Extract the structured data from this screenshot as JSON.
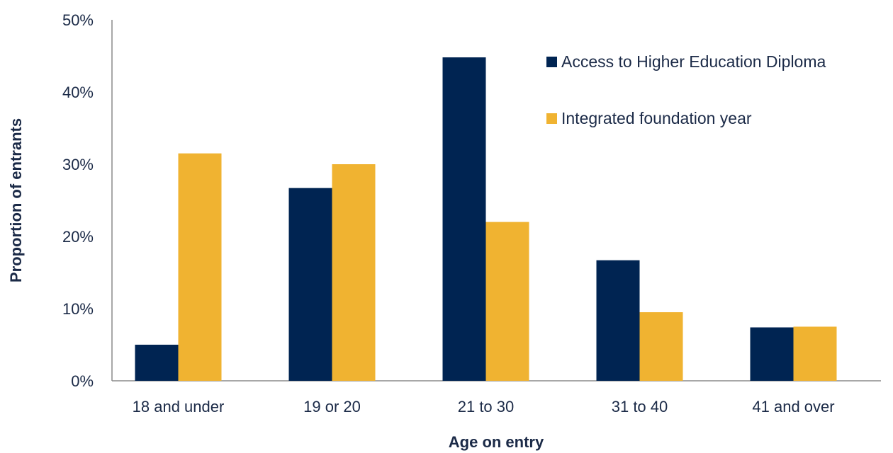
{
  "chart_data": {
    "type": "bar",
    "title": "",
    "xlabel": "Age on entry",
    "ylabel": "Proportion of entrants",
    "categories": [
      "18 and under",
      "19 or 20",
      "21 to 30",
      "31 to 40",
      "41 and over"
    ],
    "series": [
      {
        "name": "Access to Higher Education Diploma",
        "color": "#002452",
        "values": [
          5,
          26.7,
          44.8,
          16.7,
          7.4
        ]
      },
      {
        "name": "Integrated foundation year",
        "color": "#f0b331",
        "values": [
          31.5,
          30,
          22,
          9.5,
          7.5
        ]
      }
    ],
    "ylim": [
      0,
      50
    ],
    "yticks": [
      "0%",
      "10%",
      "20%",
      "30%",
      "40%",
      "50%"
    ],
    "grid": false,
    "legend_position": "top-right"
  }
}
